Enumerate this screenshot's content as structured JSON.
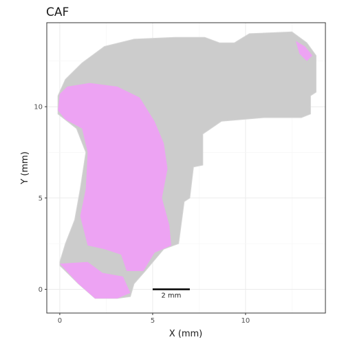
{
  "chart_data": {
    "type": "scatter",
    "title": "CAF",
    "xlabel": "X (mm)",
    "ylabel": "Y (mm)",
    "xlim": [
      -0.7,
      14.3
    ],
    "ylim": [
      -1.3,
      14.6
    ],
    "x_ticks": [
      0,
      5,
      10
    ],
    "y_ticks": [
      0,
      5,
      10
    ],
    "grid": true,
    "legend": "none",
    "colors": {
      "background_cells": "#cccccc",
      "caf_cells": "#eea0f4",
      "scale_bar": "#000000"
    },
    "regions": {
      "tissue_outline": [
        [
          0,
          1.5
        ],
        [
          0.3,
          2.5
        ],
        [
          0.8,
          3.8
        ],
        [
          1.1,
          5.5
        ],
        [
          1.4,
          7.5
        ],
        [
          0.9,
          8.8
        ],
        [
          -0.1,
          9.6
        ],
        [
          -0.1,
          10.6
        ],
        [
          0.3,
          11.5
        ],
        [
          1.2,
          12.4
        ],
        [
          2.4,
          13.3
        ],
        [
          4.0,
          13.7
        ],
        [
          6.2,
          13.8
        ],
        [
          7.8,
          13.8
        ],
        [
          8.6,
          13.5
        ],
        [
          9.4,
          13.5
        ],
        [
          10.2,
          14.0
        ],
        [
          12.5,
          14.1
        ],
        [
          13.3,
          13.5
        ],
        [
          13.8,
          12.8
        ],
        [
          13.8,
          10.8
        ],
        [
          13.5,
          10.6
        ],
        [
          13.5,
          9.6
        ],
        [
          13.0,
          9.4
        ],
        [
          11.0,
          9.4
        ],
        [
          8.7,
          9.2
        ],
        [
          7.7,
          8.5
        ],
        [
          7.7,
          6.8
        ],
        [
          7.2,
          6.7
        ],
        [
          7.0,
          5.0
        ],
        [
          6.7,
          4.8
        ],
        [
          6.4,
          2.5
        ],
        [
          5.6,
          2.2
        ],
        [
          4.6,
          1.0
        ],
        [
          4.0,
          0.3
        ],
        [
          3.8,
          -0.4
        ],
        [
          3.1,
          -0.5
        ],
        [
          1.9,
          -0.5
        ],
        [
          1.0,
          0.3
        ],
        [
          0,
          1.3
        ]
      ],
      "caf_patches": [
        [
          [
            0,
            10.7
          ],
          [
            0.4,
            11.1
          ],
          [
            1.6,
            11.3
          ],
          [
            3.1,
            11.1
          ],
          [
            4.3,
            10.5
          ],
          [
            5.1,
            9.2
          ],
          [
            5.6,
            8.0
          ],
          [
            5.8,
            6.6
          ],
          [
            5.5,
            5.0
          ],
          [
            5.9,
            3.5
          ],
          [
            6.0,
            2.4
          ],
          [
            5.1,
            2.0
          ],
          [
            4.5,
            1.0
          ],
          [
            3.6,
            1.0
          ],
          [
            3.3,
            1.9
          ],
          [
            2.4,
            2.2
          ],
          [
            1.5,
            2.4
          ],
          [
            1.1,
            4.0
          ],
          [
            1.4,
            5.5
          ],
          [
            1.5,
            7.5
          ],
          [
            1.2,
            8.8
          ],
          [
            0.3,
            9.3
          ],
          [
            -0.1,
            9.8
          ]
        ],
        [
          [
            0,
            1.4
          ],
          [
            1.5,
            1.5
          ],
          [
            2.3,
            0.9
          ],
          [
            3.4,
            0.7
          ],
          [
            3.8,
            -0.2
          ],
          [
            3.1,
            -0.5
          ],
          [
            1.9,
            -0.5
          ],
          [
            1.0,
            0.3
          ]
        ],
        [
          [
            12.7,
            13.6
          ],
          [
            13.2,
            13.3
          ],
          [
            13.6,
            12.8
          ],
          [
            13.3,
            12.5
          ],
          [
            12.9,
            12.9
          ]
        ]
      ]
    },
    "scale_bar": {
      "x_start": 5,
      "x_end": 7,
      "y": 0,
      "label": "2 mm"
    }
  }
}
